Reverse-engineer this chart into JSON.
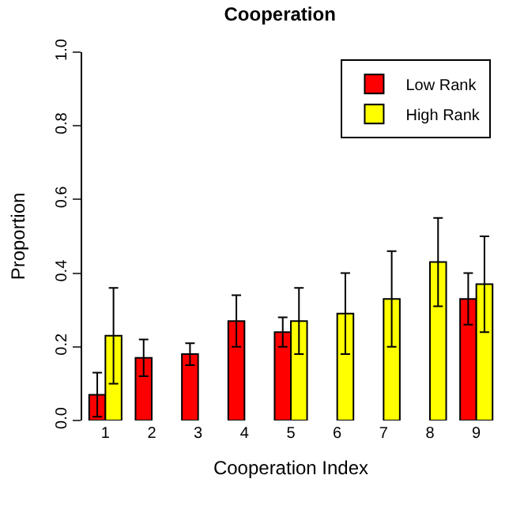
{
  "chart_data": {
    "type": "bar",
    "title": "Cooperation",
    "xlabel": "Cooperation Index",
    "ylabel": "Proportion",
    "categories": [
      "1",
      "2",
      "3",
      "4",
      "5",
      "6",
      "7",
      "8",
      "9"
    ],
    "series": [
      {
        "name": "Low Rank",
        "color": "#ff0000",
        "values": [
          0.07,
          0.17,
          0.18,
          0.27,
          0.24,
          null,
          null,
          null,
          0.33
        ],
        "errors": [
          [
            0.01,
            0.13
          ],
          [
            0.12,
            0.22
          ],
          [
            0.15,
            0.21
          ],
          [
            0.2,
            0.34
          ],
          [
            0.2,
            0.28
          ],
          null,
          null,
          null,
          [
            0.26,
            0.4
          ]
        ]
      },
      {
        "name": "High Rank",
        "color": "#ffff00",
        "values": [
          0.23,
          null,
          null,
          null,
          0.27,
          0.29,
          0.33,
          0.43,
          0.37
        ],
        "errors": [
          [
            0.1,
            0.36
          ],
          null,
          null,
          null,
          [
            0.18,
            0.36
          ],
          [
            0.18,
            0.4
          ],
          [
            0.2,
            0.46
          ],
          [
            0.31,
            0.55
          ],
          [
            0.24,
            0.5
          ]
        ]
      }
    ],
    "ylim": [
      0,
      1
    ],
    "yticks": [
      {
        "value": 0,
        "label": "0.0"
      },
      {
        "value": 0.2,
        "label": "0.2"
      },
      {
        "value": 0.4,
        "label": "0.4"
      },
      {
        "value": 0.6,
        "label": "0.6"
      },
      {
        "value": 0.8,
        "label": "0.8"
      },
      {
        "value": 1,
        "label": "1.0"
      }
    ],
    "legend": "top right"
  }
}
